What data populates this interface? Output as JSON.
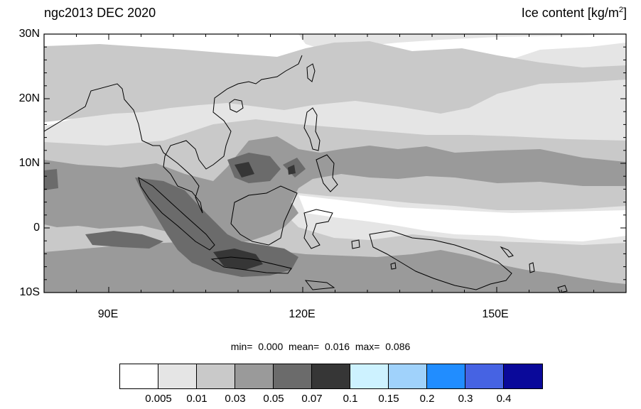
{
  "title_left": "ngc2013 DEC 2020",
  "title_right_main": "Ice content  [kg/m",
  "title_right_sup": "2",
  "title_right_end": "]",
  "lat_labels": [
    "30N",
    "20N",
    "10N",
    "0",
    "10S"
  ],
  "lon_labels": [
    "90E",
    "120E",
    "150E"
  ],
  "stats": {
    "min_label": "min=",
    "min_value": "0.000",
    "mean_label": "mean=",
    "mean_value": "0.016",
    "max_label": "max=",
    "max_value": "0.086"
  },
  "colorbar": {
    "colors": [
      "#ffffff",
      "#e5e5e5",
      "#c9c9c9",
      "#9a9a9a",
      "#6b6b6b",
      "#363636",
      "#cdf2ff",
      "#a0d2fb",
      "#218dff",
      "#4663e3",
      "#0a099a"
    ],
    "labels": [
      "0.005",
      "0.01",
      "0.03",
      "0.05",
      "0.07",
      "0.1",
      "0.15",
      "0.2",
      "0.3",
      "0.4"
    ]
  },
  "map_extent": {
    "lon_range": [
      80,
      170
    ],
    "lat_range": [
      -10,
      30
    ]
  }
}
